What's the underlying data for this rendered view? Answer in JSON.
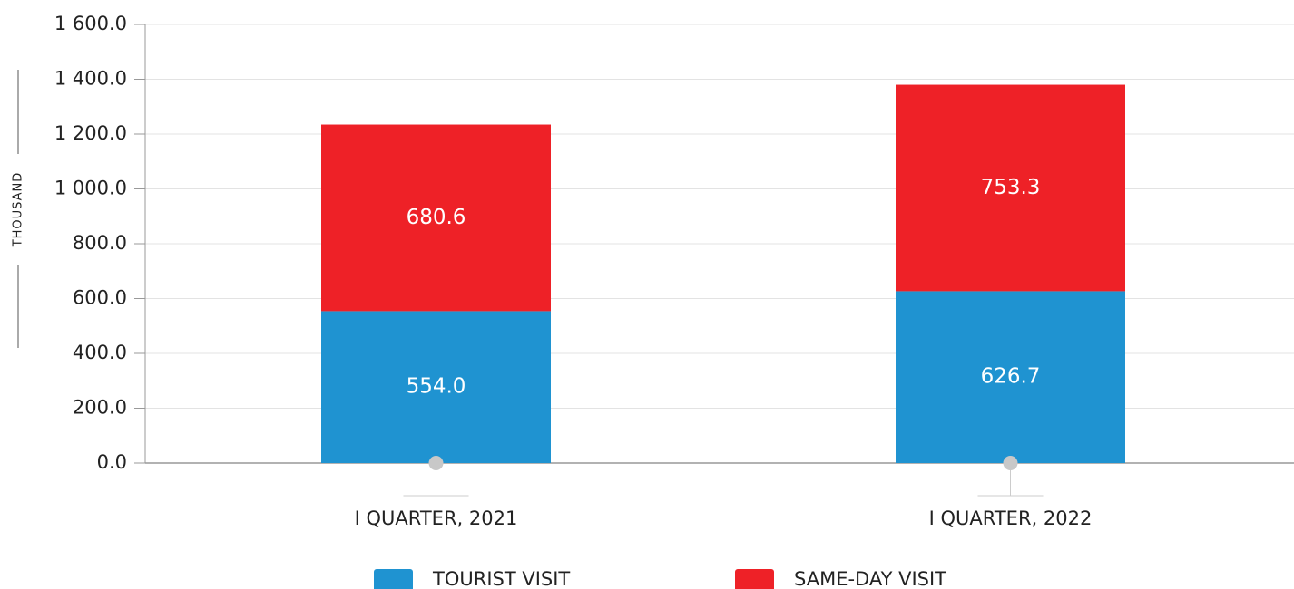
{
  "chart_data": {
    "type": "stacked_bar",
    "y_axis_label": "THOUSAND",
    "categories": [
      "I QUARTER, 2021",
      "I QUARTER, 2022"
    ],
    "series": [
      {
        "name": "TOURIST VISIT",
        "color": "#1f93d1",
        "values": [
          554.0,
          626.7
        ],
        "value_labels": [
          "554.0",
          "626.7"
        ]
      },
      {
        "name": "SAME-DAY VISIT",
        "color": "#ee2127",
        "values": [
          680.6,
          753.3
        ],
        "value_labels": [
          "680.6",
          "753.3"
        ]
      }
    ],
    "ylim": [
      0,
      1600
    ],
    "yticks": [
      {
        "value": 0,
        "label": "0.0"
      },
      {
        "value": 200,
        "label": "200.0"
      },
      {
        "value": 400,
        "label": "400.0"
      },
      {
        "value": 600,
        "label": "600.0"
      },
      {
        "value": 800,
        "label": "800.0"
      },
      {
        "value": 1000,
        "label": "1 000.0"
      },
      {
        "value": 1200,
        "label": "1 200.0"
      },
      {
        "value": 1400,
        "label": "1 400.0"
      },
      {
        "value": 1600,
        "label": "1 600.0"
      }
    ],
    "grid": true
  }
}
